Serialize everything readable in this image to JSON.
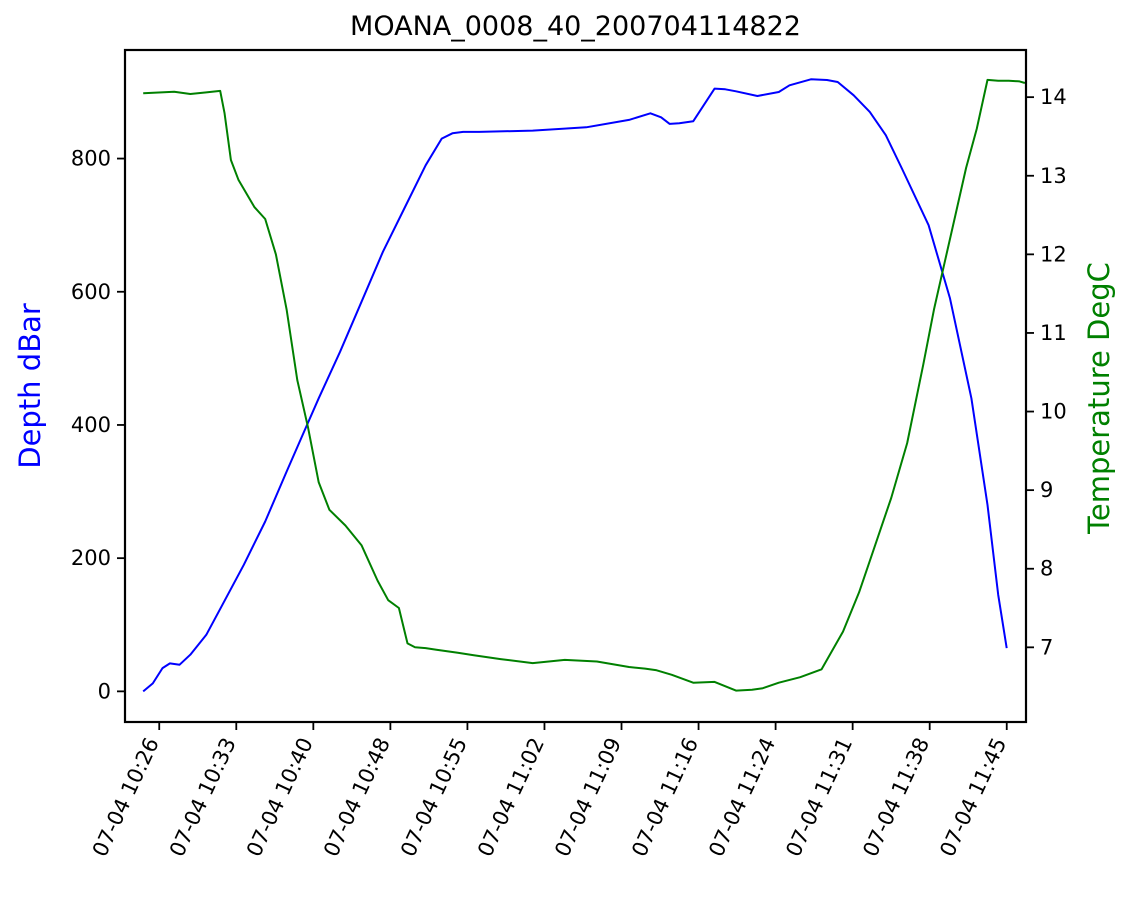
{
  "chart_data": {
    "type": "line",
    "title": "MOANA_0008_40_200704114822",
    "x_tick_labels": [
      "07-04 10:26",
      "07-04 10:33",
      "07-04 10:40",
      "07-04 10:48",
      "07-04 10:55",
      "07-04 11:02",
      "07-04 11:09",
      "07-04 11:16",
      "07-04 11:24",
      "07-04 11:31",
      "07-04 11:38",
      "07-04 11:45"
    ],
    "left_axis": {
      "label": "Depth dBar",
      "color": "#0000ff",
      "ylim": [
        -46,
        963
      ],
      "ticks": [
        0,
        200,
        400,
        600,
        800
      ]
    },
    "right_axis": {
      "label": "Temperature DegC",
      "color": "#008000",
      "ylim": [
        6.05,
        14.6
      ],
      "ticks": [
        7,
        8,
        9,
        10,
        11,
        12,
        13,
        14
      ]
    },
    "x_unit": "minutes after 07-04 10:26",
    "xlim": [
      -3.1,
      81.1
    ],
    "series": [
      {
        "name": "Depth dBar",
        "axis": "left",
        "color": "#0000ff",
        "x": [
          -1.4,
          -0.5,
          0.4,
          1.1,
          2.0,
          3.0,
          4.5,
          6.0,
          8.0,
          10.0,
          12.0,
          13.5,
          15.0,
          17.0,
          19.0,
          21.0,
          23.0,
          25.0,
          26.5,
          27.5,
          28.5,
          30.0,
          35.0,
          40.0,
          44.0,
          46.0,
          47.0,
          47.8,
          48.7,
          50.0,
          52.0,
          53.0,
          54.0,
          56.0,
          58.0,
          59.0,
          61.0,
          62.5,
          63.5,
          65.0,
          66.5,
          68.0,
          69.5,
          72.0,
          74.0,
          76.0,
          77.5,
          78.5,
          79.3
        ],
        "y": [
          0,
          12,
          35,
          42,
          40,
          55,
          85,
          130,
          190,
          255,
          330,
          385,
          440,
          510,
          585,
          660,
          725,
          790,
          830,
          838,
          840,
          840,
          842,
          847,
          858,
          868,
          862,
          852,
          853,
          856,
          905,
          904,
          901,
          894,
          900,
          910,
          919,
          918,
          915,
          895,
          870,
          835,
          785,
          700,
          590,
          440,
          280,
          145,
          65
        ]
      },
      {
        "name": "Temperature DegC",
        "axis": "right",
        "color": "#008000",
        "x": [
          -1.4,
          1.5,
          3.0,
          4.5,
          5.8,
          6.2,
          6.8,
          7.5,
          9.0,
          10.0,
          11.0,
          12.0,
          13.0,
          14.0,
          15.0,
          16.0,
          17.5,
          19.0,
          20.5,
          21.5,
          22.5,
          23.3,
          24.0,
          25.0,
          26.0,
          27.0,
          28.0,
          29.5,
          32.0,
          35.0,
          38.0,
          41.0,
          44.0,
          45.5,
          46.5,
          48.0,
          50.0,
          52.0,
          54.0,
          55.5,
          56.5,
          58.0,
          60.0,
          62.0,
          64.0,
          65.5,
          66.5,
          67.5,
          68.5,
          70.0,
          71.5,
          72.5,
          73.5,
          74.5,
          75.5,
          76.5,
          77.5,
          78.5,
          79.5,
          80.5,
          81.0
        ],
        "y": [
          14.05,
          14.07,
          14.04,
          14.06,
          14.08,
          13.8,
          13.2,
          12.95,
          12.6,
          12.45,
          12.0,
          11.3,
          10.4,
          9.8,
          9.1,
          8.75,
          8.55,
          8.3,
          7.85,
          7.6,
          7.5,
          7.05,
          7.0,
          6.99,
          6.97,
          6.95,
          6.93,
          6.9,
          6.85,
          6.8,
          6.84,
          6.82,
          6.75,
          6.73,
          6.71,
          6.65,
          6.55,
          6.56,
          6.45,
          6.46,
          6.48,
          6.55,
          6.62,
          6.72,
          7.2,
          7.7,
          8.1,
          8.5,
          8.9,
          9.6,
          10.6,
          11.3,
          11.9,
          12.5,
          13.1,
          13.6,
          14.22,
          14.21,
          14.21,
          14.2,
          14.18
        ]
      }
    ]
  }
}
